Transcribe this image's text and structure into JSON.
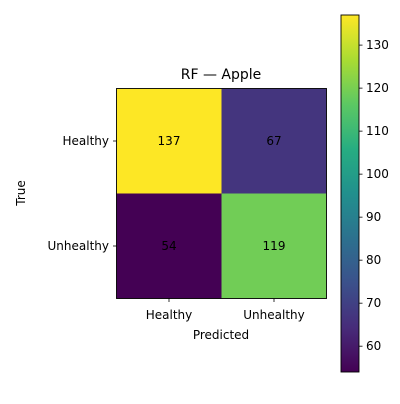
{
  "chart_data": {
    "type": "heatmap",
    "title": "RF — Apple",
    "xlabel": "Predicted",
    "ylabel": "True",
    "x_categories": [
      "Healthy",
      "Unhealthy"
    ],
    "y_categories": [
      "Healthy",
      "Unhealthy"
    ],
    "matrix": [
      [
        137,
        67
      ],
      [
        54,
        119
      ]
    ],
    "colormap": "viridis",
    "colorbar": {
      "range": [
        54,
        137
      ],
      "ticks": [
        60,
        70,
        80,
        90,
        100,
        110,
        120,
        130
      ]
    }
  }
}
